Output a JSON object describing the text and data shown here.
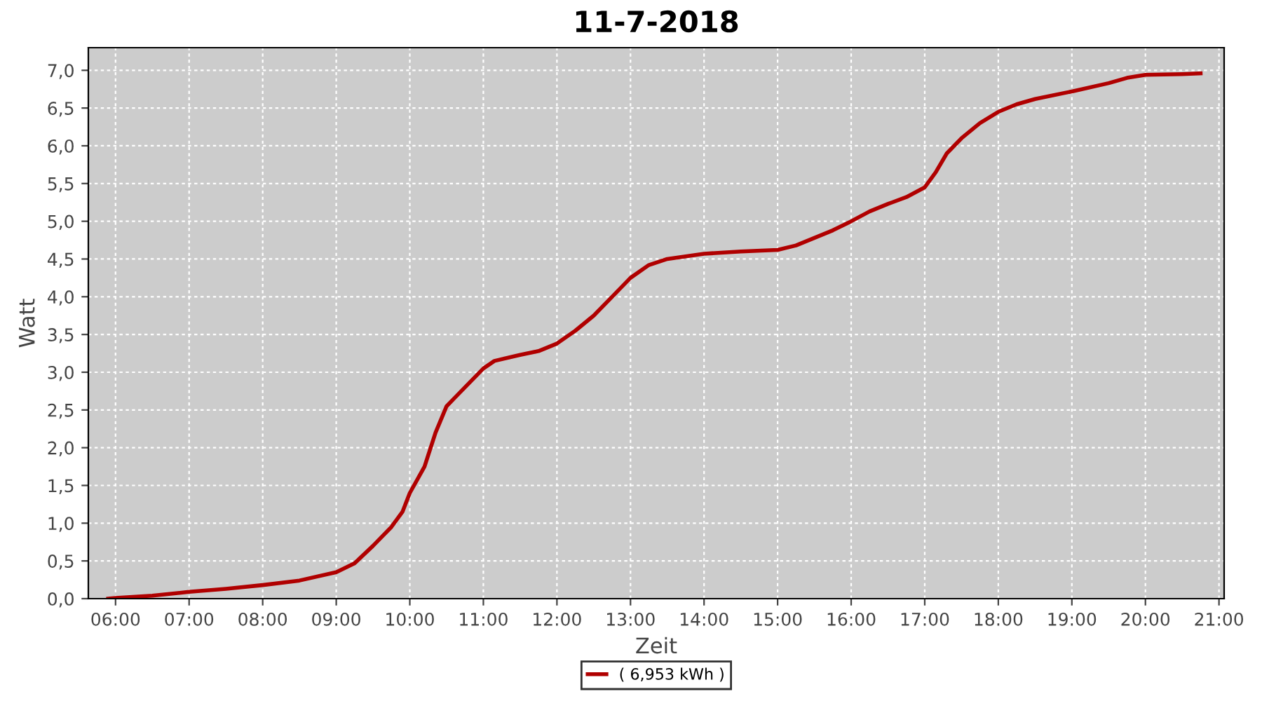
{
  "chart_data": {
    "type": "line",
    "title": "11-7-2018",
    "xlabel": "Zeit",
    "ylabel": "Watt",
    "xlim": [
      5.63,
      21.07
    ],
    "ylim": [
      0,
      7.3
    ],
    "xticks": [
      {
        "value": 6,
        "label": "06:00"
      },
      {
        "value": 7,
        "label": "07:00"
      },
      {
        "value": 8,
        "label": "08:00"
      },
      {
        "value": 9,
        "label": "09:00"
      },
      {
        "value": 10,
        "label": "10:00"
      },
      {
        "value": 11,
        "label": "11:00"
      },
      {
        "value": 12,
        "label": "12:00"
      },
      {
        "value": 13,
        "label": "13:00"
      },
      {
        "value": 14,
        "label": "14:00"
      },
      {
        "value": 15,
        "label": "15:00"
      },
      {
        "value": 16,
        "label": "16:00"
      },
      {
        "value": 17,
        "label": "17:00"
      },
      {
        "value": 18,
        "label": "18:00"
      },
      {
        "value": 19,
        "label": "19:00"
      },
      {
        "value": 20,
        "label": "20:00"
      },
      {
        "value": 21,
        "label": "21:00"
      }
    ],
    "yticks": [
      {
        "value": 0,
        "label": "0,0"
      },
      {
        "value": 0.5,
        "label": "0,5"
      },
      {
        "value": 1,
        "label": "1,0"
      },
      {
        "value": 1.5,
        "label": "1,5"
      },
      {
        "value": 2,
        "label": "2,0"
      },
      {
        "value": 2.5,
        "label": "2,5"
      },
      {
        "value": 3,
        "label": "3,0"
      },
      {
        "value": 3.5,
        "label": "3,5"
      },
      {
        "value": 4,
        "label": "4,0"
      },
      {
        "value": 4.5,
        "label": "4,5"
      },
      {
        "value": 5,
        "label": "5,0"
      },
      {
        "value": 5.5,
        "label": "5,5"
      },
      {
        "value": 6,
        "label": "6,0"
      },
      {
        "value": 6.5,
        "label": "6,5"
      },
      {
        "value": 7,
        "label": "7,0"
      }
    ],
    "grid": true,
    "legend": "bottom",
    "marker": "none",
    "line_style": "solid",
    "series": [
      {
        "name": "( 6,953 kWh )",
        "color": "#b00000",
        "x": [
          5.9,
          6.0,
          6.5,
          7.0,
          7.5,
          8.0,
          8.5,
          9.0,
          9.25,
          9.5,
          9.75,
          9.9,
          10.0,
          10.2,
          10.35,
          10.5,
          10.6,
          10.8,
          11.0,
          11.15,
          11.5,
          11.75,
          12.0,
          12.25,
          12.5,
          12.75,
          13.0,
          13.25,
          13.5,
          14.0,
          14.5,
          15.0,
          15.25,
          15.5,
          15.75,
          16.0,
          16.25,
          16.5,
          16.75,
          17.0,
          17.15,
          17.3,
          17.5,
          17.75,
          18.0,
          18.25,
          18.5,
          19.0,
          19.5,
          19.75,
          20.0,
          20.5,
          20.75
        ],
        "values": [
          0.0,
          0.01,
          0.04,
          0.09,
          0.13,
          0.18,
          0.24,
          0.35,
          0.47,
          0.7,
          0.95,
          1.15,
          1.4,
          1.75,
          2.2,
          2.55,
          2.65,
          2.85,
          3.05,
          3.15,
          3.23,
          3.28,
          3.38,
          3.55,
          3.75,
          4.0,
          4.25,
          4.42,
          4.5,
          4.57,
          4.6,
          4.62,
          4.68,
          4.78,
          4.88,
          5.0,
          5.13,
          5.23,
          5.32,
          5.45,
          5.65,
          5.9,
          6.1,
          6.3,
          6.45,
          6.55,
          6.62,
          6.72,
          6.83,
          6.9,
          6.94,
          6.95,
          6.96
        ]
      }
    ]
  }
}
